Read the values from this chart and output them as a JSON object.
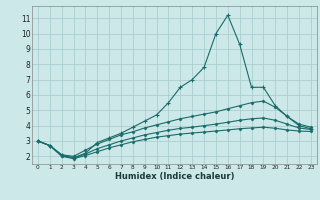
{
  "xlabel": "Humidex (Indice chaleur)",
  "bg_color": "#cce8e8",
  "grid_color": "#aacece",
  "line_color": "#1a6b6b",
  "xlim": [
    -0.5,
    23.5
  ],
  "ylim": [
    1.5,
    11.8
  ],
  "yticks": [
    2,
    3,
    4,
    5,
    6,
    7,
    8,
    9,
    10,
    11
  ],
  "xticks": [
    0,
    1,
    2,
    3,
    4,
    5,
    6,
    7,
    8,
    9,
    10,
    11,
    12,
    13,
    14,
    15,
    16,
    17,
    18,
    19,
    20,
    21,
    22,
    23
  ],
  "series1": {
    "x": [
      0,
      1,
      2,
      3,
      4,
      5,
      6,
      7,
      8,
      9,
      10,
      11,
      12,
      13,
      14,
      15,
      16,
      17,
      18,
      19,
      20,
      21,
      22,
      23
    ],
    "y": [
      3.0,
      2.7,
      2.1,
      1.9,
      2.2,
      2.9,
      3.2,
      3.5,
      3.9,
      4.3,
      4.7,
      5.5,
      6.5,
      7.0,
      7.8,
      10.0,
      11.2,
      9.3,
      6.5,
      6.5,
      5.3,
      4.6,
      4.0,
      3.8
    ]
  },
  "series2": {
    "x": [
      0,
      1,
      2,
      3,
      4,
      5,
      6,
      7,
      8,
      9,
      10,
      11,
      12,
      13,
      14,
      15,
      16,
      17,
      18,
      19,
      20,
      21,
      22,
      23
    ],
    "y": [
      3.0,
      2.7,
      2.1,
      2.0,
      2.4,
      2.8,
      3.1,
      3.4,
      3.6,
      3.85,
      4.05,
      4.25,
      4.45,
      4.6,
      4.75,
      4.9,
      5.1,
      5.3,
      5.5,
      5.6,
      5.2,
      4.6,
      4.1,
      3.9
    ]
  },
  "series3": {
    "x": [
      0,
      1,
      2,
      3,
      4,
      5,
      6,
      7,
      8,
      9,
      10,
      11,
      12,
      13,
      14,
      15,
      16,
      17,
      18,
      19,
      20,
      21,
      22,
      23
    ],
    "y": [
      3.0,
      2.7,
      2.05,
      1.9,
      2.15,
      2.5,
      2.75,
      3.0,
      3.2,
      3.4,
      3.55,
      3.7,
      3.82,
      3.9,
      4.0,
      4.1,
      4.22,
      4.35,
      4.45,
      4.5,
      4.35,
      4.1,
      3.85,
      3.75
    ]
  },
  "series4": {
    "x": [
      0,
      1,
      2,
      3,
      4,
      5,
      6,
      7,
      8,
      9,
      10,
      11,
      12,
      13,
      14,
      15,
      16,
      17,
      18,
      19,
      20,
      21,
      22,
      23
    ],
    "y": [
      3.0,
      2.7,
      2.0,
      1.85,
      2.05,
      2.3,
      2.55,
      2.75,
      2.95,
      3.1,
      3.25,
      3.35,
      3.45,
      3.52,
      3.58,
      3.65,
      3.72,
      3.8,
      3.85,
      3.9,
      3.83,
      3.72,
      3.65,
      3.62
    ]
  }
}
